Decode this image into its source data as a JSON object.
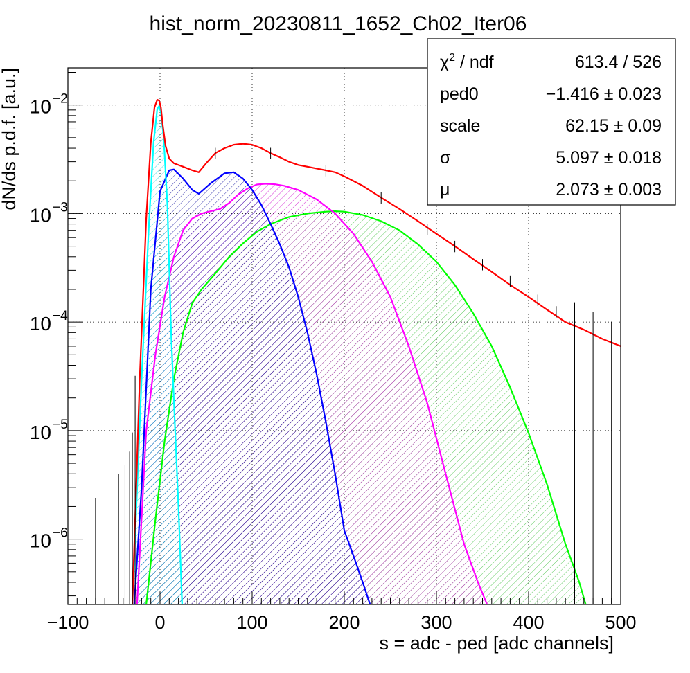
{
  "chart_data": {
    "type": "line",
    "title": "hist_norm_20230811_1652_Ch02_Iter06",
    "xlabel": "s = adc - ped [adc channels]",
    "ylabel": "dN/ds p.d.f. [a.u.]",
    "xlim": [
      -100,
      500
    ],
    "ylim": [
      2.5e-07,
      0.022
    ],
    "yscale": "log",
    "grid": true,
    "x_ticks": [
      "−100",
      "0",
      "100",
      "200",
      "300",
      "400",
      "500"
    ],
    "x_tick_values": [
      -100,
      0,
      100,
      200,
      300,
      400,
      500
    ],
    "y_ticks": [
      {
        "value": 0.01,
        "mantissa": "10",
        "exponent": "−2"
      },
      {
        "value": 0.001,
        "mantissa": "10",
        "exponent": "−3"
      },
      {
        "value": 0.0001,
        "mantissa": "10",
        "exponent": "−4"
      },
      {
        "value": 1e-05,
        "mantissa": "10",
        "exponent": "−5"
      },
      {
        "value": 1e-06,
        "mantissa": "10",
        "exponent": "−6"
      }
    ],
    "stats_box": {
      "placement": "top-right",
      "rows": [
        {
          "label_base": "χ",
          "label_sup": "2",
          "label_rest": " / ndf",
          "value": "613.4 / 526"
        },
        {
          "label_base": "ped0",
          "label_sup": "",
          "label_rest": "",
          "value": "−1.416 ± 0.023"
        },
        {
          "label_base": "scale",
          "label_sup": "",
          "label_rest": "",
          "value": "62.15 ± 0.09"
        },
        {
          "label_base": "σ",
          "label_sup": "",
          "label_rest": "",
          "value": "5.097 ± 0.018"
        },
        {
          "label_base": "μ",
          "label_sup": "",
          "label_rest": "",
          "value": "2.073 ± 0.003"
        }
      ]
    },
    "series": [
      {
        "color": "#00ffff",
        "hatch": "#00d8d8",
        "x": [
          -30,
          -20,
          -12,
          -7,
          -3,
          -1,
          1,
          4,
          8,
          12,
          16,
          20,
          24
        ],
        "y": [
          2.5e-07,
          3e-05,
          0.0008,
          0.0045,
          0.0092,
          0.0098,
          0.0085,
          0.005,
          0.0012,
          8e-05,
          1.2e-05,
          2e-06,
          2.5e-07
        ]
      },
      {
        "color": "#0000ff",
        "hatch": "#000099",
        "x": [
          -28,
          -20,
          -10,
          0,
          10,
          15,
          25,
          35,
          42,
          55,
          70,
          80,
          90,
          100,
          110,
          120,
          130,
          140,
          150,
          160,
          170,
          180,
          190,
          200,
          210,
          220,
          228
        ],
        "y": [
          2.5e-07,
          3e-06,
          0.0002,
          0.0016,
          0.0025,
          0.00255,
          0.0021,
          0.00165,
          0.00152,
          0.0019,
          0.00235,
          0.0024,
          0.0021,
          0.00165,
          0.0012,
          0.0008,
          0.00052,
          0.00032,
          0.00017,
          8e-05,
          3.3e-05,
          1.2e-05,
          4e-06,
          1.2e-06,
          7e-07,
          4e-07,
          2.5e-07
        ]
      },
      {
        "color": "#ff00ff",
        "hatch": "#cc00cc",
        "x": [
          -25,
          -15,
          -5,
          5,
          15,
          25,
          35,
          45,
          55,
          65,
          75,
          85,
          95,
          105,
          115,
          125,
          135,
          150,
          170,
          190,
          210,
          230,
          250,
          270,
          290,
          310,
          330,
          345,
          355
        ],
        "y": [
          2.5e-07,
          1e-05,
          5e-05,
          0.00017,
          0.0004,
          0.0007,
          0.0009,
          0.001,
          0.00105,
          0.0011,
          0.00125,
          0.0015,
          0.0017,
          0.00185,
          0.00188,
          0.00186,
          0.0018,
          0.00165,
          0.00135,
          0.001,
          0.00065,
          0.00036,
          0.00017,
          6e-05,
          1.8e-05,
          4e-06,
          9e-07,
          4e-07,
          2.5e-07
        ]
      },
      {
        "color": "#00ff00",
        "hatch": "#33bb33",
        "x": [
          -15,
          -5,
          5,
          15,
          25,
          35,
          45,
          60,
          75,
          90,
          105,
          120,
          140,
          160,
          180,
          190,
          200,
          220,
          240,
          260,
          280,
          300,
          320,
          340,
          360,
          380,
          400,
          420,
          440,
          455,
          462
        ],
        "y": [
          2.5e-07,
          1.5e-06,
          8e-06,
          3e-05,
          8e-05,
          0.00015,
          0.0002,
          0.00028,
          0.0004,
          0.00053,
          0.00068,
          0.0008,
          0.00093,
          0.001,
          0.00104,
          0.00105,
          0.00104,
          0.00097,
          0.00085,
          0.0007,
          0.00052,
          0.00036,
          0.00022,
          0.00012,
          6e-05,
          2.5e-05,
          9.5e-06,
          3.2e-06,
          9e-07,
          4e-07,
          2.5e-07
        ]
      },
      {
        "color": "#ff0000",
        "x": [
          -30,
          -22,
          -15,
          -10,
          -6,
          -3,
          -1,
          1,
          3,
          6,
          10,
          15,
          25,
          35,
          42,
          50,
          60,
          70,
          80,
          90,
          100,
          110,
          120,
          130,
          140,
          150,
          160,
          170,
          180,
          190,
          200,
          220,
          240,
          260,
          280,
          300,
          320,
          340,
          360,
          380,
          400,
          420,
          440,
          460,
          480,
          500
        ],
        "y": [
          2.5e-07,
          3e-05,
          0.0009,
          0.0045,
          0.0095,
          0.0112,
          0.011,
          0.0095,
          0.0065,
          0.0042,
          0.0032,
          0.0029,
          0.0027,
          0.0025,
          0.0024,
          0.0029,
          0.0036,
          0.004,
          0.0043,
          0.0044,
          0.0043,
          0.004,
          0.0036,
          0.0033,
          0.003,
          0.0028,
          0.0027,
          0.0026,
          0.0025,
          0.0024,
          0.0022,
          0.0018,
          0.0014,
          0.0011,
          0.00085,
          0.00065,
          0.0005,
          0.00038,
          0.00029,
          0.00022,
          0.00017,
          0.00013,
          0.0001,
          8.5e-05,
          7e-05,
          6e-05
        ]
      },
      {
        "color": "#000000",
        "style": "points-with-errors",
        "x": [
          -70,
          -45,
          -38,
          -33,
          -30,
          -27,
          60,
          120,
          180,
          240,
          290,
          320,
          350,
          380,
          410,
          430,
          450,
          470,
          490
        ],
        "y": [
          1.5e-06,
          2.5e-06,
          3e-06,
          4e-06,
          6e-06,
          2e-05,
          0.0036,
          0.0036,
          0.0025,
          0.0014,
          0.00072,
          0.0005,
          0.00034,
          0.00024,
          0.00016,
          0.000125,
          9.5e-05,
          7.8e-05,
          6.3e-05
        ]
      }
    ]
  }
}
